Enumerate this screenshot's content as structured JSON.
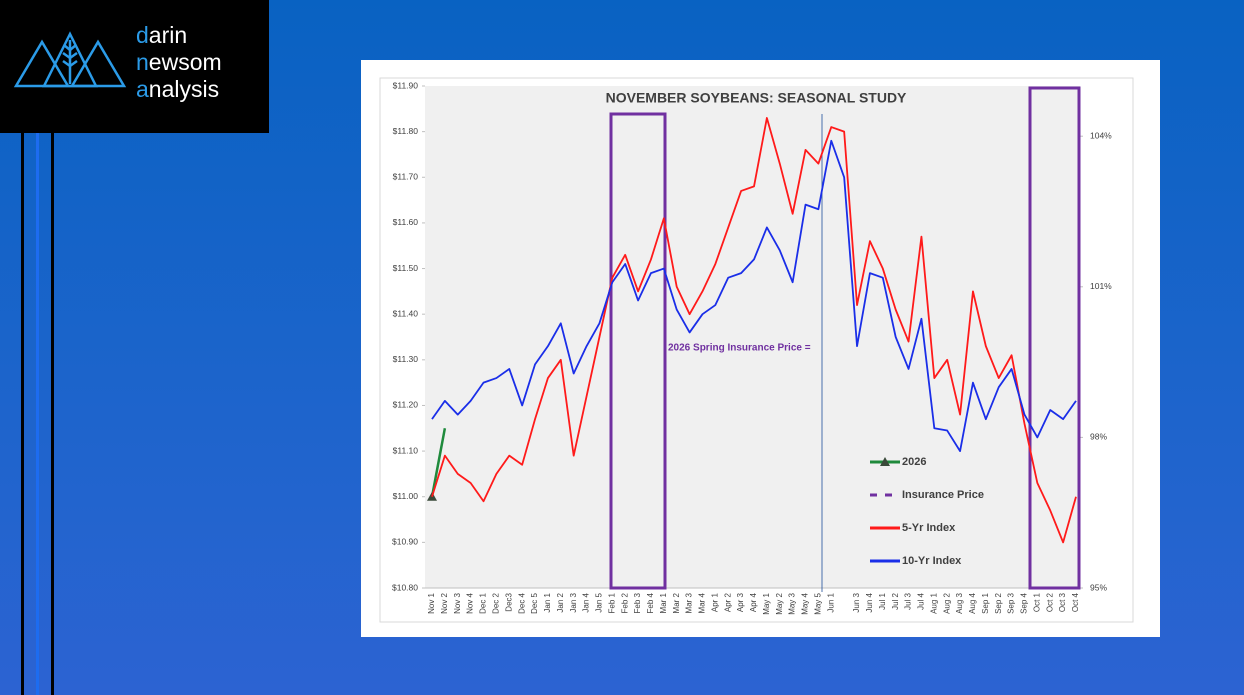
{
  "logo": [
    "darin",
    "newsom",
    "analysis"
  ],
  "chart_data": {
    "type": "line",
    "title": "NOVEMBER SOYBEANS: SEASONAL STUDY",
    "annotation": "2026 Spring Insurance Price =",
    "categories": [
      "Nov 1",
      "Nov 2",
      "Nov 3",
      "Nov 4",
      "Dec 1",
      "Dec 2",
      "Dec3",
      "Dec 4",
      "Dec 5",
      "Jan 1",
      "Jan 2",
      "Jan 3",
      "Jan 4",
      "Jan 5",
      "Feb 1",
      "Feb 2",
      "Feb 3",
      "Feb 4",
      "Mar 1",
      "Mar 2",
      "Mar 3",
      "Mar 4",
      "Apr 1",
      "Apr 2",
      "Apr 3",
      "Apr 4",
      "May 1",
      "May 2",
      "May 3",
      "May 4",
      "May 5",
      "Jun 1",
      null,
      "Jun 3",
      "Jun 4",
      "Jul 1",
      "Jul 2",
      "Jul 3",
      "Jul 4",
      "Aug 1",
      "Aug 2",
      "Aug 3",
      "Aug 4",
      "Sep 1",
      "Sep 2",
      "Sep 3",
      "Sep 4",
      "Oct 1",
      "Oct 2",
      "Oct 3",
      "Oct 4"
    ],
    "series": [
      {
        "name": "2026",
        "color": "#1f8a3c",
        "marker": "triangle",
        "values": [
          11.0,
          11.15,
          null,
          null,
          null,
          null,
          null,
          null,
          null,
          null,
          null,
          null,
          null,
          null,
          null,
          null,
          null,
          null,
          null,
          null,
          null,
          null,
          null,
          null,
          null,
          null,
          null,
          null,
          null,
          null,
          null,
          null,
          null,
          null,
          null,
          null,
          null,
          null,
          null,
          null,
          null,
          null,
          null,
          null,
          null,
          null,
          null,
          null,
          null,
          null,
          null
        ]
      },
      {
        "name": "Insurance Price",
        "color": "#7030a0",
        "dash": true
      },
      {
        "name": "5-Yr Index",
        "color": "#ff1a1a",
        "values": [
          11.0,
          11.09,
          11.05,
          11.03,
          10.99,
          11.05,
          11.09,
          11.07,
          11.17,
          11.26,
          11.3,
          11.09,
          11.22,
          11.35,
          11.48,
          11.53,
          11.45,
          11.52,
          11.61,
          11.46,
          11.4,
          11.45,
          11.51,
          11.59,
          11.67,
          11.68,
          11.83,
          11.73,
          11.62,
          11.76,
          11.73,
          11.81,
          11.8,
          11.42,
          11.56,
          11.5,
          11.41,
          11.34,
          11.57,
          11.26,
          11.3,
          11.18,
          11.45,
          11.33,
          11.26,
          11.31,
          11.16,
          11.03,
          10.97,
          10.9,
          11.0
        ]
      },
      {
        "name": "10-Yr Index",
        "color": "#1a2ee8",
        "values": [
          11.17,
          11.21,
          11.18,
          11.21,
          11.25,
          11.26,
          11.28,
          11.2,
          11.29,
          11.33,
          11.38,
          11.27,
          11.33,
          11.38,
          11.47,
          11.51,
          11.43,
          11.49,
          11.5,
          11.41,
          11.36,
          11.4,
          11.42,
          11.48,
          11.49,
          11.52,
          11.59,
          11.54,
          11.47,
          11.64,
          11.63,
          11.78,
          11.7,
          11.33,
          11.49,
          11.48,
          11.35,
          11.28,
          11.39,
          11.15,
          11.145,
          11.1,
          11.25,
          11.17,
          11.24,
          11.28,
          11.18,
          11.13,
          11.19,
          11.17,
          11.21
        ]
      }
    ],
    "ylim": [
      10.8,
      11.9
    ],
    "yticks": [
      {
        "value": 10.8,
        "label": "$10.80"
      },
      {
        "value": 10.9,
        "label": "$10.90"
      },
      {
        "value": 11.0,
        "label": "$11.00"
      },
      {
        "value": 11.1,
        "label": "$11.10"
      },
      {
        "value": 11.2,
        "label": "$11.20"
      },
      {
        "value": 11.3,
        "label": "$11.30"
      },
      {
        "value": 11.4,
        "label": "$11.40"
      },
      {
        "value": 11.5,
        "label": "$11.50"
      },
      {
        "value": 11.6,
        "label": "$11.60"
      },
      {
        "value": 11.7,
        "label": "$11.70"
      },
      {
        "value": 11.8,
        "label": "$11.80"
      },
      {
        "value": 11.9,
        "label": "$11.90"
      }
    ],
    "y2lim": [
      95,
      105
    ],
    "y2ticks": [
      {
        "value": 95,
        "label": "95%"
      },
      {
        "value": 98,
        "label": "98%"
      },
      {
        "value": 101,
        "label": "101%"
      },
      {
        "value": 104,
        "label": "104%"
      }
    ]
  }
}
